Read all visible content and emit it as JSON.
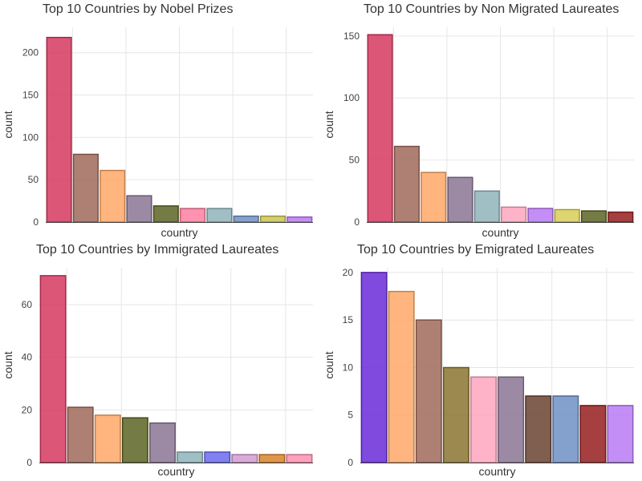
{
  "chart_data": [
    {
      "type": "bar",
      "title": "Top 10 Countries by Nobel Prizes",
      "xlabel": "country",
      "ylabel": "count",
      "ylim": [
        0,
        230
      ],
      "yticks": [
        0,
        50,
        100,
        150,
        200
      ],
      "grid": true,
      "values": [
        218,
        80,
        61,
        31,
        19,
        16,
        16,
        7,
        7,
        6
      ],
      "colors": [
        "#d6385f",
        "#a06a5c",
        "#ffa866",
        "#8b7594",
        "#5c6423",
        "#ff7fa0",
        "#8fb4ba",
        "#6f8fc4",
        "#ccc455",
        "#b97bf5"
      ]
    },
    {
      "type": "bar",
      "title": "Top 10 Countries by Non Migrated Laureates",
      "xlabel": "country",
      "ylabel": "count",
      "ylim": [
        0,
        157
      ],
      "yticks": [
        0,
        50,
        100,
        150
      ],
      "grid": true,
      "values": [
        151,
        61,
        40,
        36,
        25,
        12,
        11,
        10,
        9,
        8
      ],
      "colors": [
        "#d6385f",
        "#a06a5c",
        "#ffa866",
        "#8b7594",
        "#8fb4ba",
        "#ffa6c0",
        "#b97bf5",
        "#d8cd57",
        "#5c6423",
        "#961f1f"
      ]
    },
    {
      "type": "bar",
      "title": "Top 10 Countries by Immigrated Laureates",
      "xlabel": "country",
      "ylabel": "count",
      "ylim": [
        0,
        74
      ],
      "yticks": [
        0,
        20,
        40,
        60
      ],
      "grid": true,
      "values": [
        71,
        21,
        18,
        17,
        15,
        4,
        4,
        3,
        3,
        3
      ],
      "colors": [
        "#d6385f",
        "#a06a5c",
        "#ffa866",
        "#5c6423",
        "#8b7594",
        "#8fb4ba",
        "#6b6bf0",
        "#d39cd0",
        "#d9822b",
        "#ff8fb0"
      ]
    },
    {
      "type": "bar",
      "title": "Top 10 Countries by Emigrated Laureates",
      "xlabel": "country",
      "ylabel": "count",
      "ylim": [
        0,
        20.5
      ],
      "yticks": [
        0,
        5,
        10,
        15,
        20
      ],
      "grid": true,
      "values": [
        20,
        18,
        15,
        10,
        9,
        9,
        7,
        7,
        6,
        6
      ],
      "colors": [
        "#6a2ad8",
        "#ffa866",
        "#a06a5c",
        "#8a7430",
        "#ffa6c0",
        "#8b7594",
        "#6a4332",
        "#6f8fc4",
        "#961f1f",
        "#b97bf5"
      ]
    }
  ]
}
